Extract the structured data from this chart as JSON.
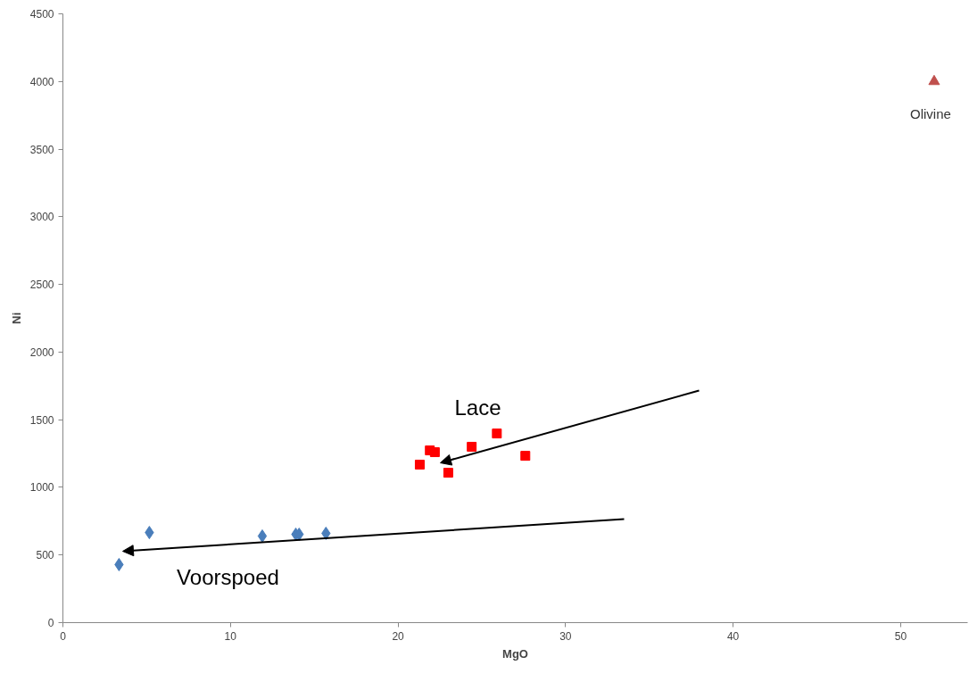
{
  "chart_data": {
    "type": "scatter",
    "xlabel": "MgO",
    "ylabel": "Ni",
    "xlim": [
      0,
      54
    ],
    "xticks": [
      0,
      10,
      20,
      30,
      40,
      50
    ],
    "ylim": [
      0,
      4500
    ],
    "yticks": [
      0,
      500,
      1000,
      1500,
      2000,
      2500,
      3000,
      3500,
      4000,
      4500
    ],
    "grid": false,
    "series": [
      {
        "color": "#4a7ebb",
        "marker": "diamond",
        "x": [
          3.35,
          5.16,
          11.9,
          13.9,
          14.1,
          15.7
        ],
        "values": [
          429,
          666,
          640,
          653,
          653,
          660
        ]
      },
      {
        "color": "#ff0000",
        "marker": "square",
        "x": [
          21.3,
          21.9,
          22.2,
          23.0,
          24.4,
          25.9,
          27.6
        ],
        "values": [
          1168,
          1273,
          1260,
          1108,
          1300,
          1398,
          1233
        ]
      },
      {
        "color": "#c0504d",
        "marker": "triangle",
        "x": [
          52
        ],
        "values": [
          4000
        ]
      }
    ],
    "annotations": [
      "Lace",
      "Voorspoed",
      {
        "text": "Olivine",
        "x": 52,
        "y": 4000
      }
    ]
  }
}
